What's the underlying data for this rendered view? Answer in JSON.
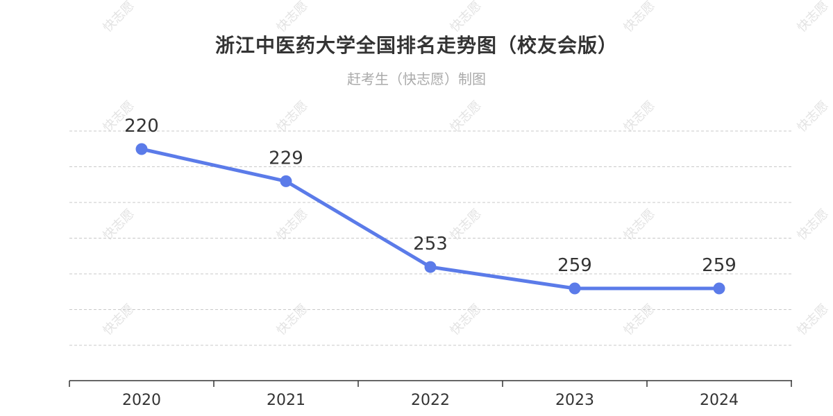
{
  "title": "浙江中医药大学全国排名走势图（校友会版）",
  "subtitle": "赶考生（快志愿）制图",
  "watermark": "快志愿",
  "colors": {
    "line": "#5b7be9",
    "grid": "#c8c8c8",
    "axis": "#333333"
  },
  "chart_data": {
    "type": "line",
    "categories": [
      "2020",
      "2021",
      "2022",
      "2023",
      "2024"
    ],
    "series": [
      {
        "values": [
          220,
          229,
          253,
          259,
          259
        ]
      }
    ],
    "data_labels": [
      "220",
      "229",
      "253",
      "259",
      "259"
    ],
    "y_inverted": true,
    "ylim": [
      215,
      280
    ],
    "y_axis_visible": false,
    "grid": true,
    "legend": "none"
  }
}
